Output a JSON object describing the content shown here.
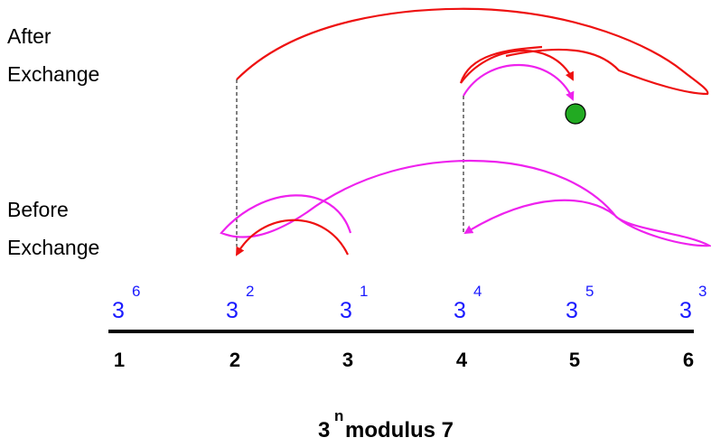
{
  "labels": {
    "after_line1": "After",
    "after_line2": "Exchange",
    "before_line1": "Before",
    "before_line2": "Exchange"
  },
  "axis": {
    "ticks": [
      "1",
      "2",
      "3",
      "4",
      "5",
      "6"
    ],
    "powers": [
      {
        "base": "3",
        "exp": "6"
      },
      {
        "base": "3",
        "exp": "2"
      },
      {
        "base": "3",
        "exp": "1"
      },
      {
        "base": "3",
        "exp": "4"
      },
      {
        "base": "3",
        "exp": "5"
      },
      {
        "base": "3",
        "exp": "3"
      }
    ]
  },
  "caption": {
    "base": "3",
    "exp": "n",
    "rest": "modulus 7"
  },
  "colors": {
    "red": "#ee1111",
    "magenta": "#ee22ee",
    "power_text": "#1a1aff",
    "marker": "#22aa22",
    "axis": "#000000"
  }
}
